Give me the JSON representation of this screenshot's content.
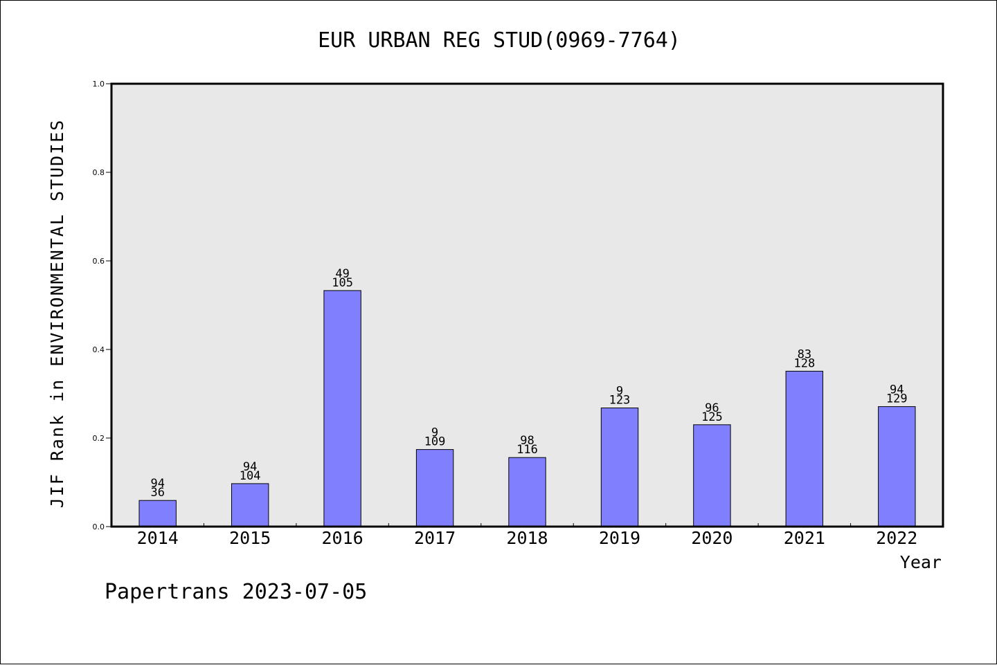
{
  "footer": "Papertrans 2023-07-05",
  "chart_data": {
    "type": "bar",
    "title": "EUR URBAN REG STUD(0969-7764)",
    "xlabel": "Year",
    "ylabel": "JIF Rank in ENVIRONMENTAL STUDIES",
    "ylim": [
      0,
      1.0
    ],
    "yticks": [
      "0.0",
      "0.2",
      "0.4",
      "0.6",
      "0.8",
      "1.0"
    ],
    "categories": [
      "2014",
      "2015",
      "2016",
      "2017",
      "2018",
      "2019",
      "2020",
      "2021",
      "2022"
    ],
    "values": [
      0.059,
      0.097,
      0.533,
      0.174,
      0.156,
      0.268,
      0.23,
      0.351,
      0.271
    ],
    "labels_top": [
      "94",
      "94",
      "49",
      "9",
      "98",
      "9",
      "96",
      "83",
      "94"
    ],
    "labels_bottom": [
      "36",
      "104",
      "105",
      "109",
      "116",
      "123",
      "125",
      "128",
      "129"
    ],
    "bar_color": "#8080ff",
    "plot_background": "#e8e8e8",
    "grid": false,
    "legend": "none"
  }
}
